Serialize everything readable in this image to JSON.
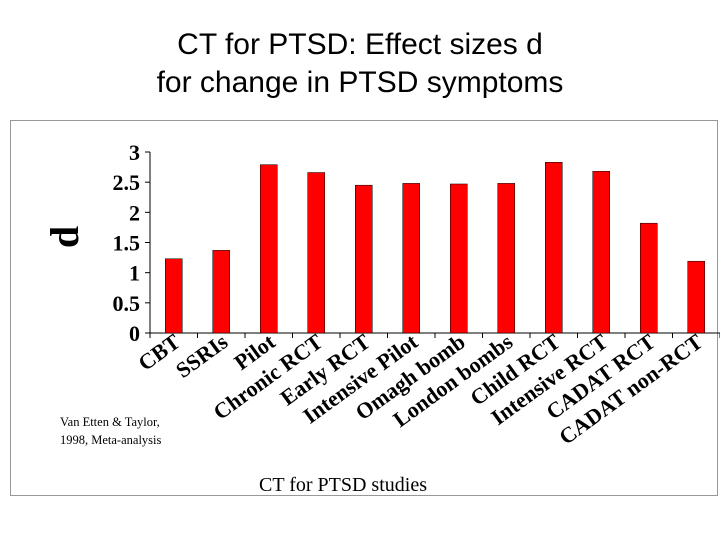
{
  "slide": {
    "title_line1": "CT for PTSD: Effect sizes d",
    "title_line2": "for change in PTSD symptoms",
    "note_line1": "Van Etten & Taylor,",
    "note_line2": "1998, Meta-analysis"
  },
  "chart_data": {
    "type": "bar",
    "title": "CT for PTSD: Effect sizes d for change in PTSD symptoms",
    "xlabel": "CT for PTSD studies",
    "ylabel": "d",
    "ylim": [
      0,
      3
    ],
    "yticks": [
      "0",
      "0.5",
      "1",
      "1.5",
      "2",
      "2.5",
      "3"
    ],
    "grid": false,
    "legend": "none",
    "bar_color": "#ff0000",
    "categories": [
      "CBT",
      "SSRIs",
      "Pilot",
      "Chronic RCT",
      "Early RCT",
      "Intensive Pilot",
      "Omagh bomb",
      "London bombs",
      "Child RCT",
      "Intensive RCT",
      "CADAT RCT",
      "CADAT non-RCT"
    ],
    "values": [
      1.23,
      1.37,
      2.79,
      2.66,
      2.45,
      2.48,
      2.47,
      2.48,
      2.83,
      2.68,
      1.82,
      1.19
    ]
  }
}
